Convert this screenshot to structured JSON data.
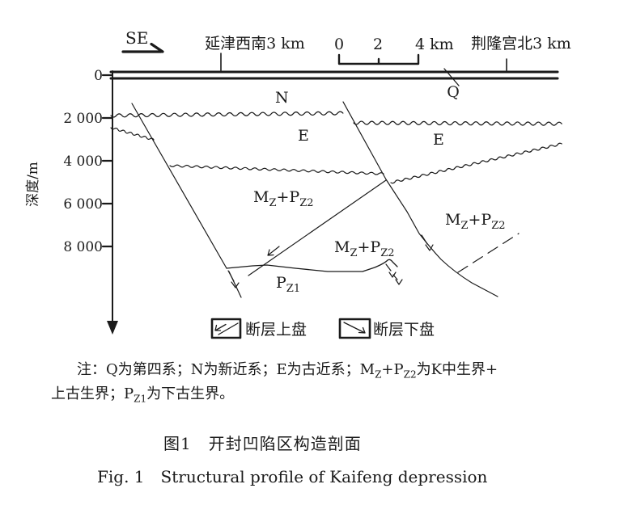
{
  "header": {
    "direction": "SE",
    "location_left": "延津西南3 km",
    "location_right": "荆隆宫北3 km",
    "scale": {
      "zero": "0",
      "two": "2",
      "four": "4 km"
    }
  },
  "axis": {
    "label": "深度/m",
    "ticks": [
      "0",
      "2 000",
      "4 000",
      "6 000",
      "8 000"
    ]
  },
  "units": {
    "q": "Q",
    "n": "N",
    "e_left": "E",
    "e_right": "E",
    "mzpz": {
      "m": "M",
      "z": "Z",
      "pp": "+P",
      "z2": "Z2"
    },
    "pz1": {
      "p": "P",
      "z1": "Z1"
    }
  },
  "legend": {
    "hanging_wall": "断层上盘",
    "footwall": "断层下盘"
  },
  "note": {
    "l1a": "注：Q为第四系；N为新近系；E为古近系；M",
    "l1b": "Z",
    "l1c": "+P",
    "l1d": "Z2",
    "l1e": "为K中生界+",
    "l2a": "上古生界；P",
    "l2b": "Z1",
    "l2c": "为下古生界。"
  },
  "caption": {
    "zh": "图1　开封凹陷区构造剖面",
    "en": "Fig. 1　Structural profile of Kaifeng depression"
  }
}
